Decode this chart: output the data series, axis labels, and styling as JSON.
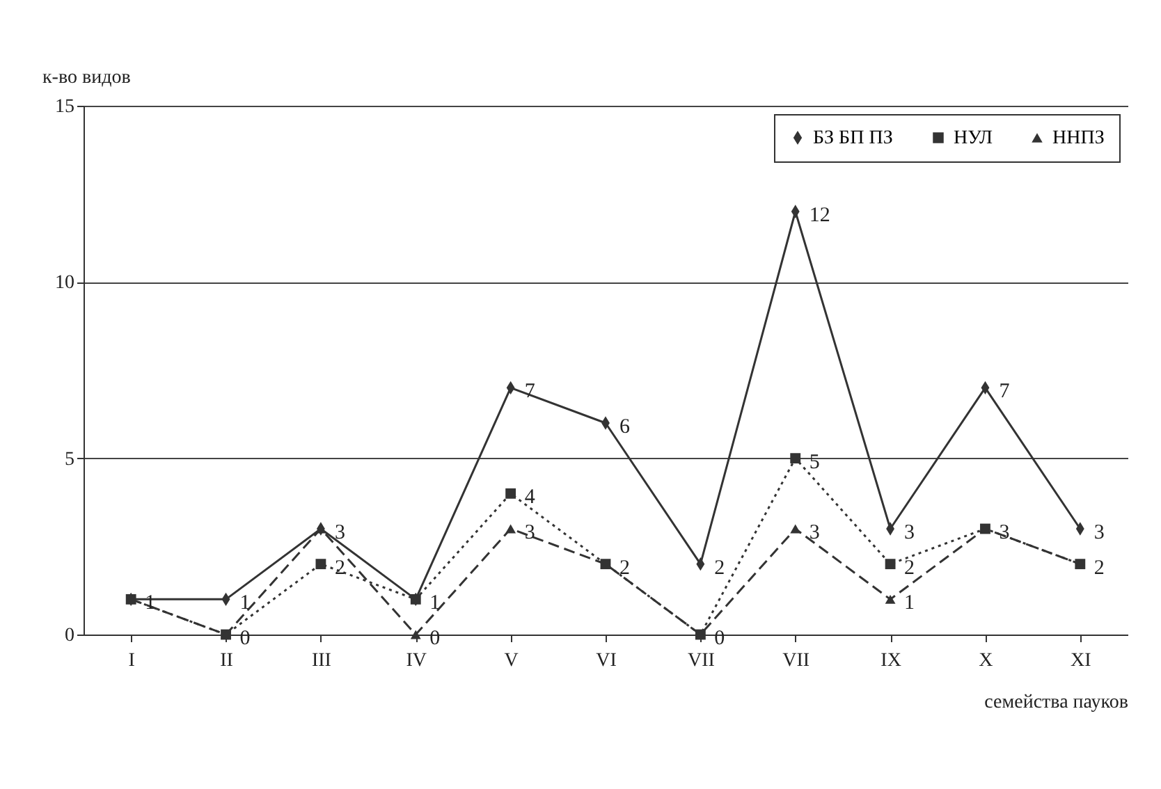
{
  "chart_data": {
    "type": "line",
    "xlabel": "семейства пауков",
    "ylabel": "к-во видов",
    "categories": [
      "I",
      "II",
      "III",
      "IV",
      "V",
      "VI",
      "VII",
      "VII",
      "IX",
      "X",
      "XI"
    ],
    "series": [
      {
        "name": "БЗ БП ПЗ",
        "color": "#333333",
        "marker": "diamond",
        "line_style": "solid",
        "values": [
          1,
          1,
          3,
          1,
          7,
          6,
          2,
          12,
          3,
          7,
          3
        ],
        "value_labels": [
          "1",
          "1",
          "3",
          "1",
          "7",
          "6",
          "2",
          "12",
          "3",
          "7",
          "3"
        ]
      },
      {
        "name": "НУЛ",
        "color": "#333333",
        "marker": "square",
        "line_style": "dotted",
        "values": [
          1,
          0,
          2,
          1,
          4,
          2,
          0,
          5,
          2,
          3,
          2
        ],
        "value_labels": [
          null,
          "0",
          "2",
          null,
          "4",
          "2",
          "0",
          "5",
          "2",
          "3",
          "2"
        ]
      },
      {
        "name": "ННПЗ",
        "color": "#333333",
        "marker": "triangle",
        "line_style": "dashed",
        "values": [
          1,
          0,
          3,
          0,
          3,
          2,
          0,
          3,
          1,
          3,
          2
        ],
        "value_labels": [
          null,
          null,
          null,
          "0",
          "3",
          null,
          null,
          "3",
          "1",
          null,
          null
        ]
      }
    ],
    "ylim": [
      0,
      15
    ],
    "yticks": [
      0,
      5,
      10,
      15
    ],
    "grid": "y",
    "legend": "top right"
  }
}
